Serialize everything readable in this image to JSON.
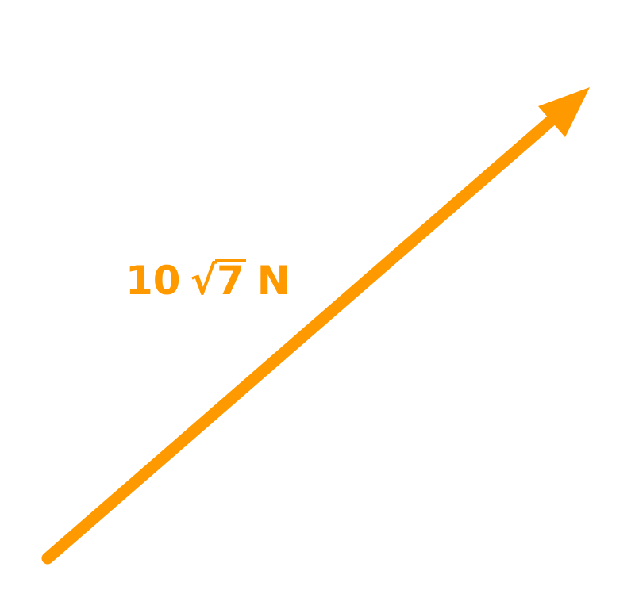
{
  "vector": {
    "label": {
      "coefficient": "10",
      "radical_sign": "√",
      "radicand": "7",
      "unit": "N"
    },
    "color": "#FF9900",
    "arrow_icon": "arrowhead-icon"
  }
}
